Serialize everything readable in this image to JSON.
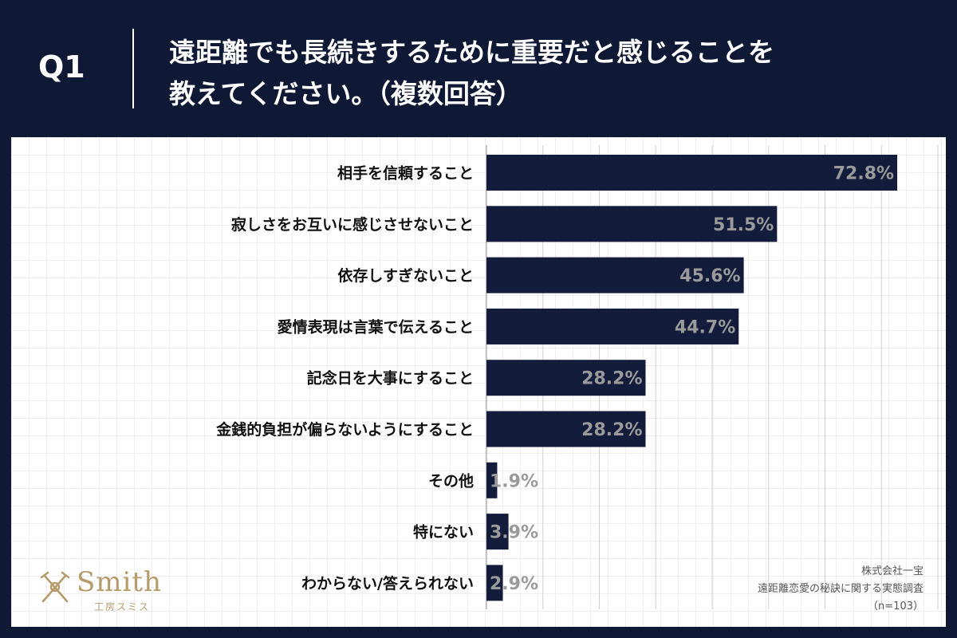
{
  "header": {
    "q_label": "Q1",
    "question_line1": "遠距離でも長続きするために重要だと感じることを",
    "question_line2": "教えてください。（複数回答）"
  },
  "chart_data": {
    "type": "bar",
    "orientation": "horizontal",
    "categories": [
      "相手を信頼すること",
      "寂しさをお互いに感じさせないこと",
      "依存しすぎないこと",
      "愛情表現は言葉で伝えること",
      "記念日を大事にすること",
      "金銭的負担が偏らないようにすること",
      "その他",
      "特にない",
      "わからない/答えられない"
    ],
    "values": [
      72.8,
      51.5,
      45.6,
      44.7,
      28.2,
      28.2,
      1.9,
      3.9,
      2.9
    ],
    "value_labels": [
      "72.8%",
      "51.5%",
      "45.6%",
      "44.7%",
      "28.2%",
      "28.2%",
      "1.9%",
      "3.9%",
      "2.9%"
    ],
    "xlim": [
      0,
      80
    ],
    "grid": true,
    "bar_color": "#141c3c",
    "label_color": "#9a9a9a"
  },
  "logo": {
    "text": "Smith",
    "sub": "工房スミス",
    "icon": "crossed-tools-icon",
    "color": "#b79a6a"
  },
  "source": {
    "company": "株式会社一宝",
    "survey": "遠距離恋愛の秘訣に関する実態調査",
    "sample": "（n=103）"
  },
  "colors": {
    "background": "#0f1834",
    "panel": "#ffffff"
  }
}
